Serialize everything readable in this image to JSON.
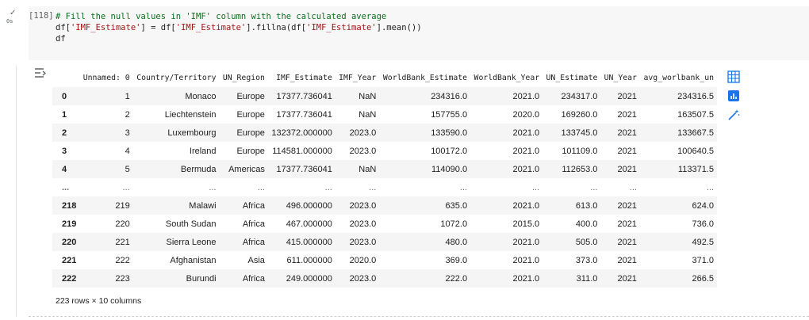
{
  "cell": {
    "status_check": "✓",
    "status_time": "0s",
    "exec_count": "[118]",
    "code": {
      "line1_comment": "# Fill the null values in 'IMF' column with the calculated average",
      "line2_a": "df[",
      "line2_s1": "'IMF_Estimate'",
      "line2_b": "] = df[",
      "line2_s2": "'IMF_Estimate'",
      "line2_c": "].fillna(df[",
      "line2_s3": "'IMF_Estimate'",
      "line2_d": "].mean())",
      "line3": "df"
    }
  },
  "table": {
    "columns": [
      "",
      "Unnamed: 0",
      "Country/Territory",
      "UN_Region",
      "IMF_Estimate",
      "IMF_Year",
      "WorldBank_Estimate",
      "WorldBank_Year",
      "UN_Estimate",
      "UN_Year",
      "avg_worlbank_un"
    ],
    "rows": [
      [
        "0",
        "1",
        "Monaco",
        "Europe",
        "17377.736041",
        "NaN",
        "234316.0",
        "2021.0",
        "234317.0",
        "2021",
        "234316.5"
      ],
      [
        "1",
        "2",
        "Liechtenstein",
        "Europe",
        "17377.736041",
        "NaN",
        "157755.0",
        "2020.0",
        "169260.0",
        "2021",
        "163507.5"
      ],
      [
        "2",
        "3",
        "Luxembourg",
        "Europe",
        "132372.000000",
        "2023.0",
        "133590.0",
        "2021.0",
        "133745.0",
        "2021",
        "133667.5"
      ],
      [
        "3",
        "4",
        "Ireland",
        "Europe",
        "114581.000000",
        "2023.0",
        "100172.0",
        "2021.0",
        "101109.0",
        "2021",
        "100640.5"
      ],
      [
        "4",
        "5",
        "Bermuda",
        "Americas",
        "17377.736041",
        "NaN",
        "114090.0",
        "2021.0",
        "112653.0",
        "2021",
        "113371.5"
      ],
      [
        "...",
        "...",
        "...",
        "...",
        "...",
        "...",
        "...",
        "...",
        "...",
        "...",
        "..."
      ],
      [
        "218",
        "219",
        "Malawi",
        "Africa",
        "496.000000",
        "2023.0",
        "635.0",
        "2021.0",
        "613.0",
        "2021",
        "624.0"
      ],
      [
        "219",
        "220",
        "South Sudan",
        "Africa",
        "467.000000",
        "2023.0",
        "1072.0",
        "2015.0",
        "400.0",
        "2021",
        "736.0"
      ],
      [
        "220",
        "221",
        "Sierra Leone",
        "Africa",
        "415.000000",
        "2023.0",
        "480.0",
        "2021.0",
        "505.0",
        "2021",
        "492.5"
      ],
      [
        "221",
        "222",
        "Afghanistan",
        "Asia",
        "611.000000",
        "2020.0",
        "369.0",
        "2021.0",
        "373.0",
        "2021",
        "371.0"
      ],
      [
        "222",
        "223",
        "Burundi",
        "Africa",
        "249.000000",
        "2023.0",
        "222.0",
        "2021.0",
        "311.0",
        "2021",
        "266.5"
      ]
    ],
    "shape_text": "223 rows × 10 columns"
  },
  "icons": {
    "output_icon": "output-toggle-icon",
    "table_icon": "table-view-icon",
    "chart_icon": "chart-suggest-icon",
    "wand_icon": "magic-wand-icon"
  },
  "colors": {
    "accent": "#1a73e8"
  }
}
